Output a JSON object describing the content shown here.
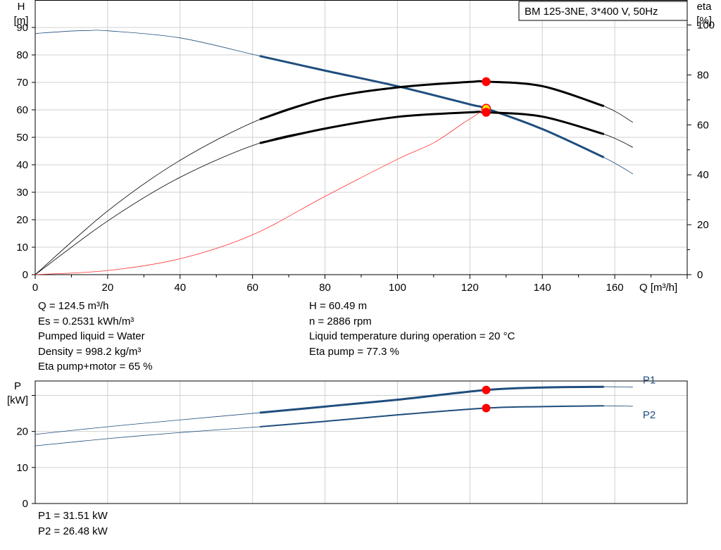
{
  "chart_data": [
    {
      "type": "line",
      "title": "BM 125-3NE, 3*400 V, 50Hz",
      "xlabel": "Q [m³/h]",
      "ylabel": [
        "H",
        "[m]"
      ],
      "y2label": [
        "eta",
        "[%]"
      ],
      "xlim": [
        0,
        180
      ],
      "ylim": [
        0,
        100
      ],
      "y2lim": [
        0,
        110
      ],
      "xticks": [
        "0",
        "20",
        "40",
        "60",
        "80",
        "100",
        "120",
        "140",
        "160"
      ],
      "yticks": [
        "0",
        "10",
        "20",
        "30",
        "40",
        "50",
        "60",
        "70",
        "80",
        "90"
      ],
      "y2ticks": [
        "0",
        "20",
        "40",
        "60",
        "80",
        "100"
      ],
      "grid": true,
      "operating_range": [
        62,
        157
      ],
      "series": [
        {
          "axis": "left",
          "color": "#1f4e7d",
          "points": [
            [
              0,
              87.8
            ],
            [
              10,
              88.7
            ],
            [
              15,
              88.9
            ],
            [
              20,
              88.8
            ],
            [
              40,
              86.2
            ],
            [
              62,
              79.6
            ],
            [
              80,
              74.3
            ],
            [
              100,
              68.6
            ],
            [
              120,
              62.0
            ],
            [
              124.5,
              60.49
            ],
            [
              140,
              53.0
            ],
            [
              157,
              42.7
            ],
            [
              165,
              36.7
            ]
          ]
        },
        {
          "axis": "right",
          "color": "#000000",
          "points": [
            [
              0,
              0
            ],
            [
              20,
              25.5
            ],
            [
              40,
              45.8
            ],
            [
              62,
              62.2
            ],
            [
              80,
              70.5
            ],
            [
              100,
              75.0
            ],
            [
              120,
              77.2
            ],
            [
              124.5,
              77.3
            ],
            [
              140,
              75.5
            ],
            [
              157,
              67.5
            ],
            [
              165,
              61.0
            ]
          ]
        },
        {
          "axis": "right",
          "color": "#000000",
          "points": [
            [
              0,
              0
            ],
            [
              20,
              21.5
            ],
            [
              40,
              39.0
            ],
            [
              62,
              52.7
            ],
            [
              80,
              58.5
            ],
            [
              100,
              63.2
            ],
            [
              120,
              65.0
            ],
            [
              124.5,
              65.0
            ],
            [
              140,
              63.3
            ],
            [
              157,
              56.3
            ],
            [
              165,
              51.0
            ]
          ]
        },
        {
          "axis": "left",
          "color": "#ff3030",
          "points": [
            [
              0,
              0
            ],
            [
              20,
              1.5
            ],
            [
              40,
              5.8
            ],
            [
              60,
              14.5
            ],
            [
              80,
              28.5
            ],
            [
              100,
              42.0
            ],
            [
              110,
              48.0
            ],
            [
              118,
              55.0
            ],
            [
              124.5,
              60.49
            ]
          ]
        }
      ],
      "markers": [
        {
          "x": 124.5,
          "y": 60.49,
          "axis": "left",
          "fill": "#ffe000"
        },
        {
          "x": 124.5,
          "y": 77.3,
          "axis": "right",
          "fill": "#ff0000"
        },
        {
          "x": 124.5,
          "y": 65.0,
          "axis": "right",
          "fill": "#ff0000"
        }
      ]
    },
    {
      "type": "line",
      "ylabel": [
        "P",
        "[kW]"
      ],
      "xlim": [
        0,
        180
      ],
      "ylim": [
        0,
        34
      ],
      "yticks": [
        "0",
        "10",
        "20"
      ],
      "grid": true,
      "operating_range": [
        62,
        157
      ],
      "series": [
        {
          "name": "P1",
          "color": "#1f4e7d",
          "points": [
            [
              0,
              19.2
            ],
            [
              20,
              21.3
            ],
            [
              40,
              23.2
            ],
            [
              62,
              25.2
            ],
            [
              80,
              26.9
            ],
            [
              100,
              28.8
            ],
            [
              124.5,
              31.51
            ],
            [
              140,
              32.2
            ],
            [
              157,
              32.4
            ],
            [
              165,
              32.3
            ]
          ]
        },
        {
          "name": "P2",
          "color": "#1f4e7d",
          "points": [
            [
              0,
              16.0
            ],
            [
              20,
              18.0
            ],
            [
              40,
              19.7
            ],
            [
              62,
              21.3
            ],
            [
              80,
              22.8
            ],
            [
              100,
              24.6
            ],
            [
              124.5,
              26.48
            ],
            [
              140,
              26.9
            ],
            [
              157,
              27.1
            ],
            [
              165,
              27.0
            ]
          ]
        }
      ],
      "markers": [
        {
          "x": 124.5,
          "y": 31.51,
          "fill": "#ff0000"
        },
        {
          "x": 124.5,
          "y": 26.48,
          "fill": "#ff0000"
        }
      ]
    }
  ],
  "info_left": [
    "Q = 124.5 m³/h",
    "Es = 0.2531 kWh/m³",
    "Pumped liquid = Water",
    "Density = 998.2 kg/m³",
    "Eta pump+motor = 65 %"
  ],
  "info_right": [
    "H = 60.49 m",
    "n = 2886 rpm",
    "Liquid temperature during operation = 20 °C",
    "Eta pump = 77.3 %"
  ],
  "power_info": [
    "P1 = 31.51 kW",
    "P2 = 26.48 kW"
  ]
}
